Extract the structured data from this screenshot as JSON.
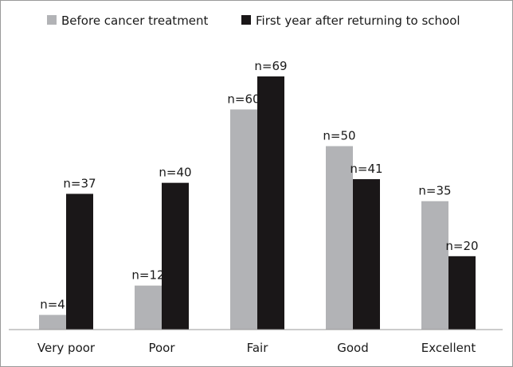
{
  "chart_data": {
    "type": "bar",
    "categories": [
      "Very poor",
      "Poor",
      "Fair",
      "Good",
      "Excellent"
    ],
    "series": [
      {
        "name": "Before cancer treatment",
        "color": "#b2b3b6",
        "values": [
          4,
          12,
          60,
          50,
          35
        ],
        "labels": [
          "n=4",
          "n=12",
          "n=60",
          "n=50",
          "n=35"
        ]
      },
      {
        "name": "First year after returning to school",
        "color": "#1a1718",
        "values": [
          37,
          40,
          69,
          41,
          20
        ],
        "labels": [
          "n=37",
          "n=40",
          "n=69",
          "n=41",
          "n=20"
        ]
      }
    ],
    "ylim": [
      0,
      72
    ],
    "legend_position": "top",
    "grid": false
  }
}
